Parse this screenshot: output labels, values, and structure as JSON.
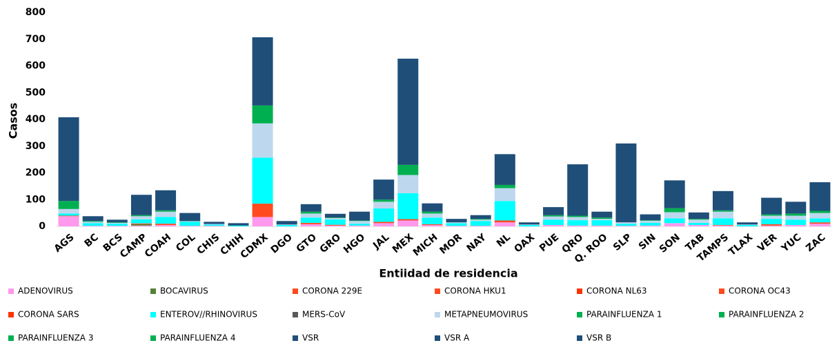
{
  "chart_data": {
    "type": "stacked_bar",
    "x_label": "Entiidad de  residencia",
    "y_label": "Casos",
    "categories": [
      "AGS",
      "BC",
      "BCS",
      "CAMP",
      "COAH",
      "COL",
      "CHIS",
      "CHIH",
      "CDMX",
      "DGO",
      "GTO",
      "GRO",
      "HGO",
      "JAL",
      "MEX",
      "MICH",
      "MOR",
      "NAY",
      "NL",
      "OAX",
      "PUE",
      "QRO",
      "Q. ROO",
      "SLP",
      "SIN",
      "SON",
      "TAB",
      "TAMPS",
      "TLAX",
      "VER",
      "YUC",
      "ZAC"
    ],
    "ylim": [
      0,
      800
    ],
    "yticks": [
      0,
      100,
      200,
      300,
      400,
      500,
      600,
      700,
      800
    ],
    "legend": "bottom",
    "series": [
      {
        "name": "ADENOVIRUS",
        "color": "#ff99ee",
        "values": [
          38,
          2,
          2,
          3,
          5,
          2,
          2,
          0,
          35,
          0,
          8,
          3,
          3,
          12,
          22,
          5,
          2,
          2,
          15,
          0,
          5,
          3,
          3,
          2,
          3,
          12,
          5,
          3,
          0,
          3,
          5,
          10
        ]
      },
      {
        "name": "BOCAVIRUS",
        "color": "#548235",
        "values": [
          0,
          0,
          0,
          5,
          0,
          0,
          0,
          0,
          0,
          0,
          0,
          0,
          0,
          0,
          0,
          0,
          0,
          0,
          0,
          0,
          0,
          0,
          0,
          0,
          0,
          0,
          0,
          0,
          0,
          0,
          0,
          0
        ]
      },
      {
        "name": "CORONA 229E",
        "color": "#ff4b1f",
        "values": [
          0,
          0,
          0,
          0,
          0,
          0,
          0,
          0,
          0,
          0,
          0,
          0,
          0,
          0,
          0,
          0,
          0,
          0,
          0,
          0,
          0,
          0,
          0,
          0,
          0,
          0,
          0,
          0,
          0,
          0,
          0,
          0
        ]
      },
      {
        "name": "CORONA HKU1",
        "color": "#ff4b1f",
        "values": [
          0,
          0,
          0,
          0,
          0,
          0,
          0,
          0,
          0,
          0,
          0,
          0,
          0,
          0,
          0,
          0,
          0,
          0,
          0,
          0,
          0,
          0,
          0,
          0,
          0,
          0,
          0,
          0,
          0,
          0,
          0,
          0
        ]
      },
      {
        "name": "CORONA NL63",
        "color": "#ff3300",
        "values": [
          0,
          0,
          0,
          0,
          0,
          0,
          0,
          0,
          0,
          0,
          0,
          0,
          0,
          0,
          0,
          0,
          0,
          0,
          0,
          0,
          0,
          0,
          0,
          0,
          0,
          0,
          0,
          0,
          0,
          0,
          0,
          0
        ]
      },
      {
        "name": "CORONA OC43",
        "color": "#ff4b1f",
        "values": [
          2,
          0,
          0,
          3,
          5,
          0,
          0,
          0,
          50,
          0,
          5,
          3,
          0,
          5,
          5,
          3,
          0,
          0,
          7,
          0,
          0,
          0,
          0,
          0,
          0,
          0,
          0,
          2,
          0,
          5,
          0,
          5
        ]
      },
      {
        "name": "CORONA SARS",
        "color": "#ff3300",
        "values": [
          0,
          0,
          0,
          0,
          0,
          0,
          0,
          0,
          0,
          0,
          0,
          0,
          0,
          0,
          0,
          0,
          0,
          0,
          0,
          0,
          0,
          0,
          0,
          0,
          0,
          0,
          0,
          0,
          0,
          0,
          0,
          0
        ]
      },
      {
        "name": "ENTEROV//RHINOVIRUS",
        "color": "#00ffff",
        "values": [
          8,
          10,
          8,
          15,
          25,
          15,
          5,
          3,
          172,
          5,
          20,
          20,
          7,
          50,
          97,
          25,
          10,
          18,
          73,
          5,
          20,
          20,
          20,
          8,
          10,
          18,
          8,
          25,
          5,
          20,
          20,
          15
        ]
      },
      {
        "name": "MERS-CoV",
        "color": "#595959",
        "values": [
          0,
          0,
          0,
          0,
          0,
          0,
          0,
          0,
          0,
          0,
          0,
          0,
          0,
          0,
          0,
          0,
          0,
          0,
          0,
          0,
          0,
          0,
          0,
          0,
          0,
          0,
          0,
          0,
          0,
          0,
          0,
          0
        ]
      },
      {
        "name": "METAPNEUMOVIRUS",
        "color": "#bdd7ee",
        "values": [
          17,
          5,
          3,
          12,
          20,
          2,
          2,
          0,
          128,
          2,
          15,
          5,
          10,
          25,
          68,
          15,
          3,
          5,
          48,
          2,
          12,
          12,
          5,
          5,
          8,
          23,
          12,
          25,
          2,
          12,
          15,
          20
        ]
      },
      {
        "name": "PARAINFLUENZA 1",
        "color": "#00b050",
        "values": [
          30,
          3,
          2,
          4,
          5,
          1,
          0,
          0,
          67,
          0,
          7,
          2,
          2,
          8,
          38,
          7,
          0,
          3,
          12,
          0,
          5,
          5,
          5,
          0,
          2,
          15,
          3,
          5,
          0,
          5,
          8,
          8
        ]
      },
      {
        "name": "PARAINFLUENZA 2",
        "color": "#00b050",
        "values": [
          0,
          0,
          0,
          0,
          0,
          0,
          0,
          0,
          0,
          0,
          0,
          0,
          0,
          0,
          0,
          0,
          0,
          0,
          0,
          0,
          0,
          0,
          0,
          0,
          0,
          0,
          0,
          0,
          0,
          0,
          0,
          0
        ]
      },
      {
        "name": "PARAINFLUENZA 3",
        "color": "#00b050",
        "values": [
          0,
          0,
          0,
          0,
          0,
          0,
          0,
          0,
          0,
          0,
          0,
          0,
          0,
          0,
          0,
          0,
          0,
          0,
          0,
          0,
          0,
          0,
          0,
          0,
          0,
          0,
          0,
          0,
          0,
          0,
          0,
          0
        ]
      },
      {
        "name": "PARAINFLUENZA 4",
        "color": "#00b050",
        "values": [
          0,
          0,
          0,
          0,
          0,
          0,
          0,
          0,
          0,
          0,
          0,
          0,
          0,
          0,
          0,
          0,
          0,
          0,
          0,
          0,
          0,
          0,
          0,
          0,
          0,
          0,
          0,
          0,
          0,
          0,
          0,
          0
        ]
      },
      {
        "name": "VSR",
        "color": "#1f4e79",
        "values": [
          313,
          18,
          10,
          76,
          75,
          30,
          8,
          9,
          255,
          13,
          28,
          14,
          33,
          75,
          397,
          31,
          13,
          14,
          115,
          8,
          30,
          192,
          22,
          295,
          22,
          104,
          24,
          72,
          8,
          62,
          44,
          107
        ]
      },
      {
        "name": "VSR A",
        "color": "#1f4e79",
        "values": [
          0,
          0,
          0,
          0,
          0,
          0,
          0,
          0,
          0,
          0,
          0,
          0,
          0,
          0,
          0,
          0,
          0,
          0,
          0,
          0,
          0,
          0,
          0,
          0,
          0,
          0,
          0,
          0,
          0,
          0,
          0,
          0
        ]
      },
      {
        "name": "VSR B",
        "color": "#1f4e79",
        "values": [
          0,
          0,
          0,
          0,
          0,
          0,
          0,
          0,
          0,
          0,
          0,
          0,
          0,
          0,
          0,
          0,
          0,
          0,
          0,
          0,
          0,
          0,
          0,
          0,
          0,
          0,
          0,
          0,
          0,
          0,
          0,
          0
        ]
      }
    ]
  }
}
